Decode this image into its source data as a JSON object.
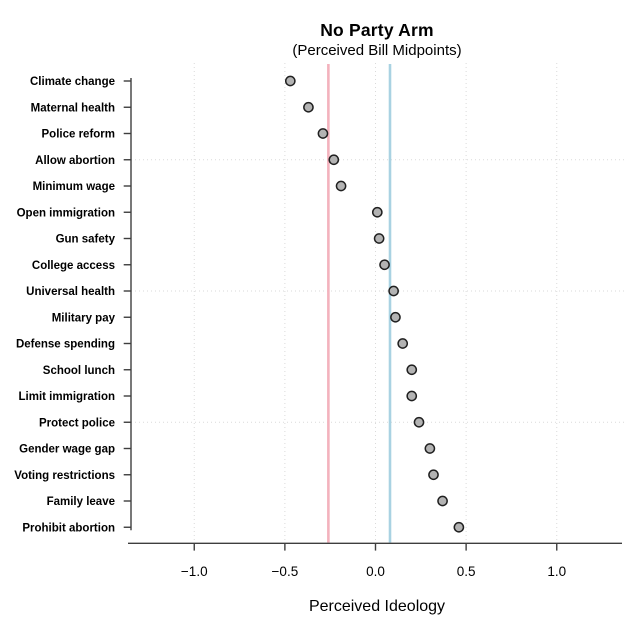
{
  "chart_data": {
    "type": "scatter",
    "title": "No Party Arm",
    "subtitle": "(Perceived Bill Midpoints)",
    "xlabel": "Perceived Ideology",
    "ylabel": "",
    "categories": [
      "Climate change",
      "Maternal health",
      "Police reform",
      "Allow abortion",
      "Minimum wage",
      "Open immigration",
      "Gun safety",
      "College access",
      "Universal health",
      "Military pay",
      "Defense spending",
      "School lunch",
      "Limit immigration",
      "Protect police",
      "Gender wage gap",
      "Voting restrictions",
      "Family leave",
      "Prohibit abortion"
    ],
    "values": [
      -0.47,
      -0.37,
      -0.29,
      -0.23,
      -0.19,
      0.01,
      0.02,
      0.05,
      0.1,
      0.11,
      0.15,
      0.2,
      0.2,
      0.24,
      0.3,
      0.32,
      0.37,
      0.46
    ],
    "xlim": [
      -1.36,
      1.36
    ],
    "x_ticks": [
      -1.0,
      -0.5,
      0.0,
      0.5,
      1.0
    ],
    "x_tick_labels": [
      "−1.0",
      "−0.5",
      "0.0",
      "0.5",
      "1.0"
    ],
    "reference_lines": [
      {
        "name": "reference-line-pink",
        "value": -0.26,
        "color": "#f3b2bd"
      },
      {
        "name": "reference-line-blue",
        "value": 0.08,
        "color": "#a9d2e2"
      }
    ],
    "h_grid_rows": [
      3,
      8,
      13
    ],
    "grid": true,
    "legend_position": "none",
    "point_style": {
      "fill": "#b3b3b3",
      "stroke": "#202020"
    },
    "colors": {
      "grid": "#dadada",
      "axis": "#3e3e3e",
      "text": "#000000"
    }
  }
}
